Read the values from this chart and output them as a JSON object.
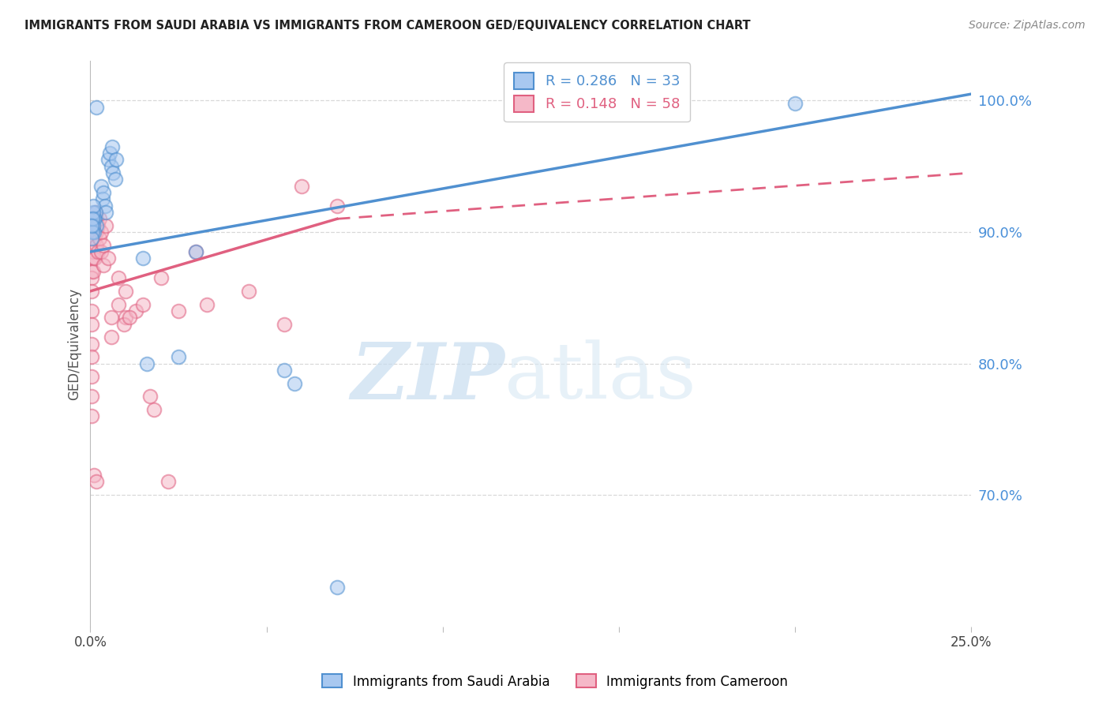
{
  "title": "IMMIGRANTS FROM SAUDI ARABIA VS IMMIGRANTS FROM CAMEROON GED/EQUIVALENCY CORRELATION CHART",
  "source": "Source: ZipAtlas.com",
  "ylabel": "GED/Equivalency",
  "right_yticks": [
    70.0,
    80.0,
    90.0,
    100.0
  ],
  "xlim": [
    0.0,
    25.0
  ],
  "ylim": [
    60.0,
    103.0
  ],
  "saudi_color": "#a8c8f0",
  "cameroon_color": "#f5b8c8",
  "saudi_line_color": "#5090d0",
  "cameroon_line_color": "#e06080",
  "watermark_zip": "ZIP",
  "watermark_atlas": "atlas",
  "grid_color": "#d8d8d8",
  "background_color": "#ffffff",
  "saudi_line_x0": 0.0,
  "saudi_line_y0": 88.5,
  "saudi_line_x1": 25.0,
  "saudi_line_y1": 100.5,
  "cameroon_line_solid_x0": 0.0,
  "cameroon_line_solid_y0": 85.5,
  "cameroon_line_solid_x1": 7.0,
  "cameroon_line_solid_y1": 91.0,
  "cameroon_line_dash_x0": 7.0,
  "cameroon_line_dash_y0": 91.0,
  "cameroon_line_dash_x1": 25.0,
  "cameroon_line_dash_y1": 94.5,
  "saudi_scatter": [
    [
      0.18,
      99.5
    ],
    [
      0.5,
      95.5
    ],
    [
      0.55,
      96.0
    ],
    [
      0.6,
      95.0
    ],
    [
      0.62,
      96.5
    ],
    [
      0.65,
      94.5
    ],
    [
      0.7,
      94.0
    ],
    [
      0.72,
      95.5
    ],
    [
      0.3,
      93.5
    ],
    [
      0.35,
      92.5
    ],
    [
      0.38,
      93.0
    ],
    [
      0.42,
      92.0
    ],
    [
      0.45,
      91.5
    ],
    [
      0.12,
      91.0
    ],
    [
      0.15,
      91.5
    ],
    [
      0.17,
      90.5
    ],
    [
      0.1,
      90.0
    ],
    [
      0.1,
      91.0
    ],
    [
      0.08,
      90.5
    ],
    [
      0.08,
      91.5
    ],
    [
      0.08,
      92.0
    ],
    [
      0.06,
      90.0
    ],
    [
      0.06,
      91.0
    ],
    [
      0.04,
      89.5
    ],
    [
      0.04,
      90.5
    ],
    [
      1.5,
      88.0
    ],
    [
      1.6,
      80.0
    ],
    [
      2.5,
      80.5
    ],
    [
      3.0,
      88.5
    ],
    [
      20.0,
      99.8
    ],
    [
      5.5,
      79.5
    ],
    [
      5.8,
      78.5
    ],
    [
      7.0,
      63.0
    ]
  ],
  "cameroon_scatter": [
    [
      0.04,
      88.0
    ],
    [
      0.04,
      87.0
    ],
    [
      0.04,
      86.5
    ],
    [
      0.04,
      85.5
    ],
    [
      0.04,
      84.0
    ],
    [
      0.04,
      83.0
    ],
    [
      0.04,
      81.5
    ],
    [
      0.04,
      80.5
    ],
    [
      0.04,
      79.0
    ],
    [
      0.04,
      77.5
    ],
    [
      0.04,
      76.0
    ],
    [
      0.08,
      91.0
    ],
    [
      0.08,
      90.0
    ],
    [
      0.08,
      89.5
    ],
    [
      0.08,
      88.5
    ],
    [
      0.08,
      88.0
    ],
    [
      0.08,
      87.0
    ],
    [
      0.12,
      90.5
    ],
    [
      0.12,
      89.5
    ],
    [
      0.12,
      88.0
    ],
    [
      0.15,
      91.5
    ],
    [
      0.15,
      90.0
    ],
    [
      0.18,
      91.0
    ],
    [
      0.18,
      90.0
    ],
    [
      0.18,
      89.0
    ],
    [
      0.22,
      90.5
    ],
    [
      0.22,
      88.5
    ],
    [
      0.25,
      91.0
    ],
    [
      0.25,
      89.5
    ],
    [
      0.3,
      90.0
    ],
    [
      0.3,
      88.5
    ],
    [
      0.38,
      89.0
    ],
    [
      0.38,
      87.5
    ],
    [
      0.45,
      90.5
    ],
    [
      0.5,
      88.0
    ],
    [
      0.6,
      83.5
    ],
    [
      0.8,
      86.5
    ],
    [
      0.8,
      84.5
    ],
    [
      1.0,
      85.5
    ],
    [
      1.0,
      83.5
    ],
    [
      1.3,
      84.0
    ],
    [
      1.5,
      84.5
    ],
    [
      2.0,
      86.5
    ],
    [
      2.5,
      84.0
    ],
    [
      3.0,
      88.5
    ],
    [
      3.3,
      84.5
    ],
    [
      4.5,
      85.5
    ],
    [
      6.0,
      93.5
    ],
    [
      7.0,
      92.0
    ],
    [
      0.1,
      71.5
    ],
    [
      2.2,
      71.0
    ],
    [
      0.18,
      71.0
    ],
    [
      1.7,
      77.5
    ],
    [
      1.8,
      76.5
    ],
    [
      0.6,
      82.0
    ],
    [
      0.95,
      83.0
    ],
    [
      1.1,
      83.5
    ],
    [
      5.5,
      83.0
    ]
  ]
}
